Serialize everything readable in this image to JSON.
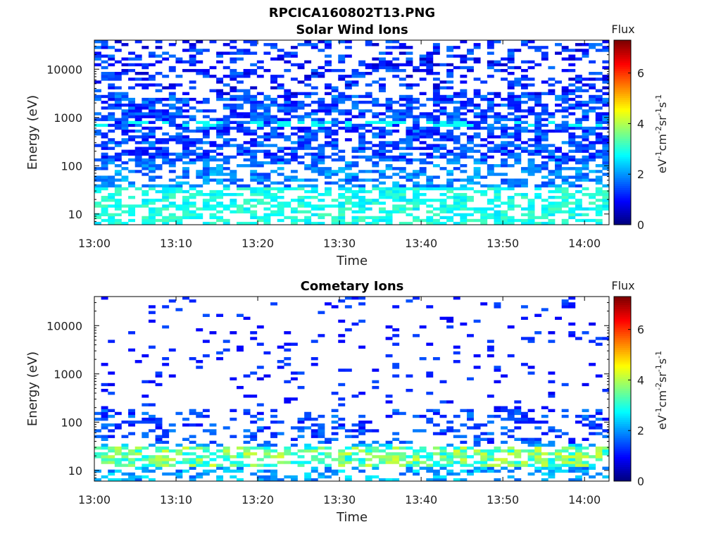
{
  "figure_title": "RPCICA160802T13.PNG",
  "colors": {
    "colormap": [
      "#000080",
      "#0000ff",
      "#0080ff",
      "#00ffff",
      "#80ff80",
      "#ffff00",
      "#ff8000",
      "#ff0000",
      "#800000"
    ],
    "frame": "#000000",
    "background": "#ffffff"
  },
  "chart_data": [
    {
      "type": "heatmap",
      "title": "Solar Wind Ions",
      "xlabel": "Time",
      "ylabel": "Energy (eV)",
      "x_ticks": [
        "13:00",
        "13:10",
        "13:20",
        "13:30",
        "13:40",
        "13:50",
        "14:00"
      ],
      "y_ticks": [
        "10",
        "100",
        "1000",
        "10000"
      ],
      "y_scale": "log",
      "ylim": [
        6,
        40000
      ],
      "xlim": [
        "13:00",
        "14:03"
      ],
      "colorbar": {
        "label": "Flux",
        "units_label": "eV-1cm-2sr-1s-1",
        "ticks": [
          "0",
          "2",
          "4",
          "6"
        ],
        "range": [
          0,
          7.3
        ]
      },
      "summary": {
        "high_energy_flux_range": [
          0.5,
          1.8
        ],
        "low_energy_flux_range": [
          2.5,
          3.3
        ],
        "band_near_800eV_flux": 2.8
      }
    },
    {
      "type": "heatmap",
      "title": "Cometary Ions",
      "xlabel": "Time",
      "ylabel": "Energy (eV)",
      "x_ticks": [
        "13:00",
        "13:10",
        "13:20",
        "13:30",
        "13:40",
        "13:50",
        "14:00"
      ],
      "y_ticks": [
        "10",
        "100",
        "1000",
        "10000"
      ],
      "y_scale": "log",
      "ylim": [
        6,
        40000
      ],
      "xlim": [
        "13:00",
        "14:03"
      ],
      "colorbar": {
        "label": "Flux",
        "units_label": "eV-1cm-2sr-1s-1",
        "ticks": [
          "0",
          "2",
          "4",
          "6"
        ],
        "range": [
          0,
          7.3
        ]
      },
      "summary": {
        "high_energy_flux_range": [
          0.8,
          1.5
        ],
        "low_energy_flux_range": [
          1.5,
          4.3
        ],
        "peak_energy_band_eV": [
          12,
          30
        ]
      }
    }
  ]
}
